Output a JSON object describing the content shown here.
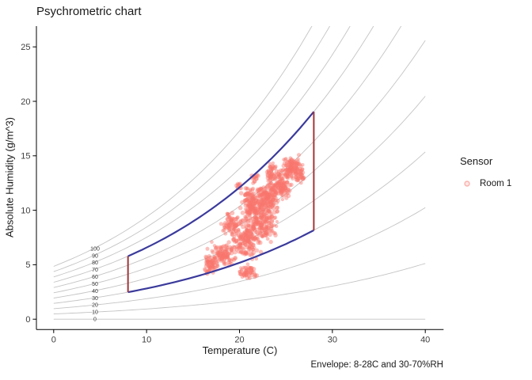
{
  "title": "Psychrometric chart",
  "axes": {
    "x": {
      "label": "Temperature (C)",
      "ticks": [
        0,
        10,
        20,
        30,
        40
      ]
    },
    "y": {
      "label": "Absolute Humidity (g/m^3)",
      "ticks": [
        0,
        5,
        10,
        15,
        20,
        25
      ]
    }
  },
  "caption": "Envelope: 8-28C and 30-70%RH",
  "legend": {
    "title": "Sensor",
    "items": [
      {
        "label": "Room 1",
        "marker": "circle-open",
        "color": "#F8766D"
      }
    ]
  },
  "colors": {
    "scatter": "#F8766D",
    "envelope_humidity_line": "#3A3A9C",
    "envelope_temperature_line": "#A23639",
    "rh_curve": "#C4C4C4",
    "rh_label": "#3d3d3d",
    "axis_line": "#000000",
    "tick_label": "#404040"
  },
  "chart_data": {
    "type": "scatter",
    "title": "Psychrometric chart",
    "xlabel": "Temperature (C)",
    "ylabel": "Absolute Humidity (g/m^3)",
    "xlim": [
      -1.9,
      42
    ],
    "ylim": [
      -0.95,
      26.9
    ],
    "x_ticks": [
      0,
      10,
      20,
      30,
      40
    ],
    "y_ticks": [
      0,
      5,
      10,
      15,
      20,
      25
    ],
    "grid": "off",
    "legend_position": "right",
    "rh_curves": {
      "description": "constant relative-humidity curves, absolute humidity = RH/100 x saturation density(T), drawn for T = 0..40 C",
      "levels": [
        0,
        10,
        20,
        30,
        40,
        50,
        60,
        70,
        80,
        90,
        100
      ],
      "label_temperature": 4.3
    },
    "envelope": {
      "t_min": 8,
      "t_max": 28,
      "rh_min": 30,
      "rh_max": 70,
      "corner_abs_humidity": {
        "t8_rh30": 2.48,
        "t8_rh70": 5.78,
        "t28_rh30": 8.17,
        "t28_rh70": 19.05
      }
    },
    "series": [
      {
        "name": "Room 1",
        "color": "#F8766D",
        "summary": "dense cloud of sensor readings, T approx 16-27 C, absolute humidity approx 3.5-15.7 g/m^3, elongated along RH curves",
        "clusters": [
          [
            22.3,
            9.3,
            1.5,
            2.0,
            280
          ],
          [
            24.3,
            12.3,
            1.1,
            1.2,
            150
          ],
          [
            25.6,
            13.9,
            0.9,
            0.9,
            110
          ],
          [
            20.6,
            7.2,
            1.2,
            1.3,
            150
          ],
          [
            18.2,
            5.9,
            1.1,
            0.9,
            110
          ],
          [
            16.9,
            5.0,
            0.7,
            0.65,
            60
          ],
          [
            20.9,
            4.4,
            0.8,
            0.55,
            55
          ],
          [
            21.2,
            10.8,
            0.8,
            1.1,
            100
          ],
          [
            23.0,
            11.2,
            0.9,
            1.1,
            110
          ],
          [
            19.3,
            8.8,
            0.9,
            1.0,
            80
          ],
          [
            23.4,
            13.6,
            0.45,
            0.6,
            30
          ],
          [
            21.7,
            12.9,
            0.3,
            0.45,
            14
          ],
          [
            20.0,
            12.2,
            0.25,
            0.4,
            10
          ],
          [
            26.4,
            13.3,
            0.5,
            0.9,
            45
          ]
        ],
        "cluster_format": [
          "temperature_C",
          "abs_humidity_g_m3",
          "spread_T",
          "spread_AH",
          "n_points"
        ]
      }
    ]
  }
}
